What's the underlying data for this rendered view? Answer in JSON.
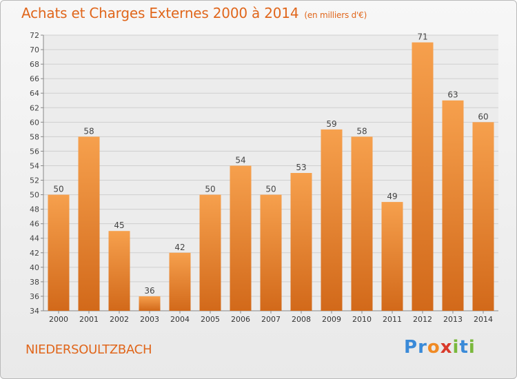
{
  "title": "Achats et Charges Externes 2000 à 2014",
  "subtitle": "(en milliers d'€)",
  "location": "NIEDERSOULTZBACH",
  "logo": {
    "text": "Proxiti",
    "letters": [
      {
        "ch": "P",
        "color": "#3a8ad8"
      },
      {
        "ch": "r",
        "color": "#3a8ad8"
      },
      {
        "ch": "o",
        "color": "#f08a24"
      },
      {
        "ch": "x",
        "color": "#d93a2b"
      },
      {
        "ch": "i",
        "color": "#7ab83c"
      },
      {
        "ch": "t",
        "color": "#3a8ad8"
      },
      {
        "ch": "i",
        "color": "#7ab83c"
      }
    ]
  },
  "chart_data": {
    "type": "bar",
    "categories": [
      "2000",
      "2001",
      "2002",
      "2003",
      "2004",
      "2005",
      "2006",
      "2007",
      "2008",
      "2009",
      "2010",
      "2011",
      "2012",
      "2013",
      "2014"
    ],
    "values": [
      50,
      58,
      45,
      36,
      42,
      50,
      54,
      50,
      53,
      59,
      58,
      49,
      71,
      63,
      60
    ],
    "ylim": [
      34,
      72
    ],
    "yticks": [
      34,
      36,
      38,
      40,
      42,
      44,
      46,
      48,
      50,
      52,
      54,
      56,
      58,
      60,
      62,
      64,
      66,
      68,
      70,
      72
    ],
    "grid": true,
    "colors": {
      "bar_top": "#f6a04d",
      "bar_bottom": "#d2691a",
      "grid": "#cfcfcf",
      "accent": "#e0661b"
    }
  }
}
